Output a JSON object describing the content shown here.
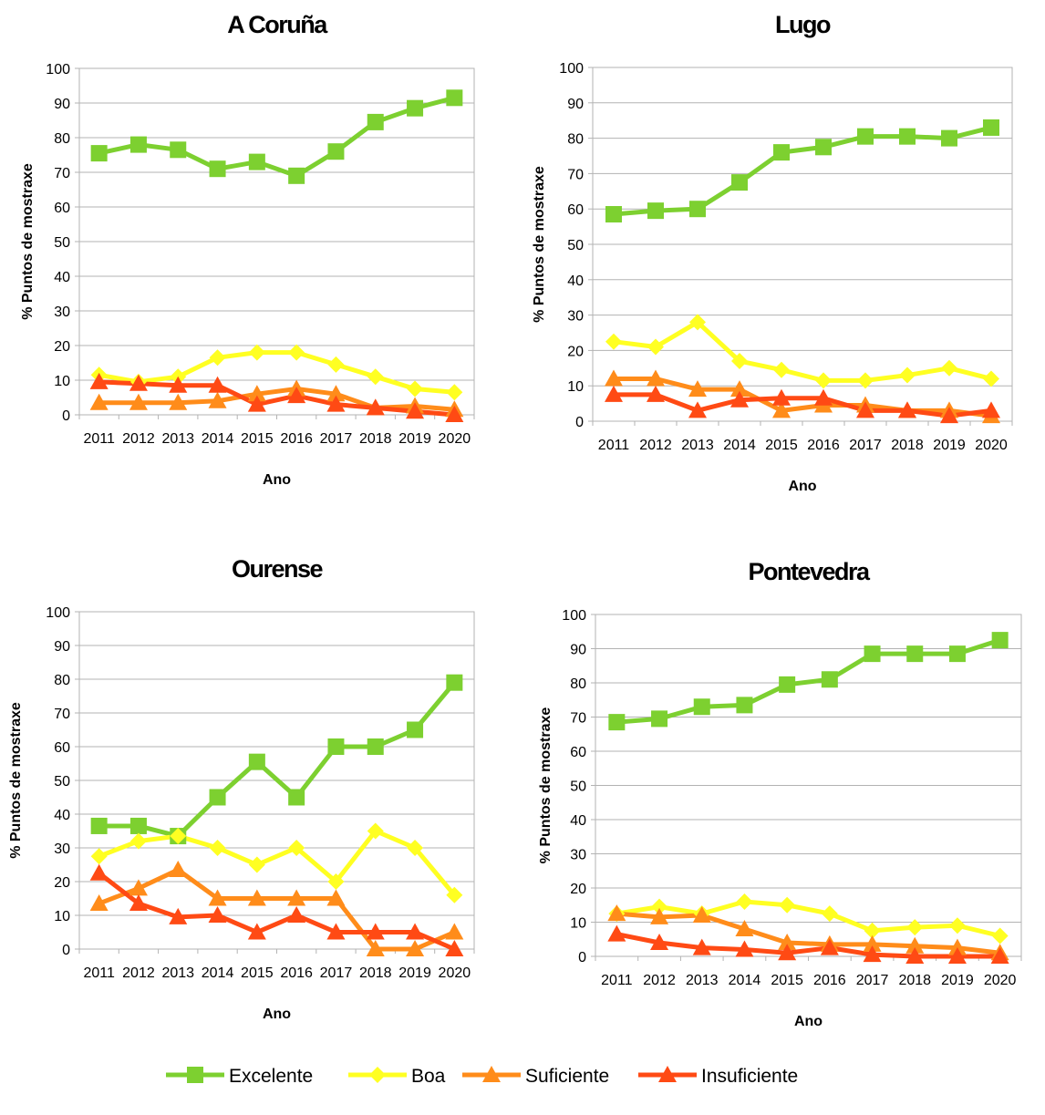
{
  "series_style": [
    {
      "name": "Excelente",
      "color": "#7dd030",
      "marker": "square"
    },
    {
      "name": "Boa",
      "color": "#ffff22",
      "marker": "diamond"
    },
    {
      "name": "Suficiente",
      "color": "#ff8c1a",
      "marker": "triangle"
    },
    {
      "name": "Insuficiente",
      "color": "#ff4a14",
      "marker": "triangle"
    }
  ],
  "legend": {
    "placement": "bottom-center",
    "items": [
      "Excelente",
      "Boa",
      "Suficiente",
      "Insuficiente"
    ]
  },
  "chart_data": [
    {
      "type": "line",
      "title": "A Coruña",
      "xlabel": "Ano",
      "ylabel": "% Puntos de mostraxe",
      "ylim": [
        0,
        100
      ],
      "yticks": [
        0,
        10,
        20,
        30,
        40,
        50,
        60,
        70,
        80,
        90,
        100
      ],
      "grid": true,
      "categories": [
        "2011",
        "2012",
        "2013",
        "2014",
        "2015",
        "2016",
        "2017",
        "2018",
        "2019",
        "2020"
      ],
      "series": [
        {
          "name": "Excelente",
          "values": [
            75.5,
            78,
            76.5,
            71,
            73,
            69,
            76,
            84.5,
            88.5,
            91.5
          ]
        },
        {
          "name": "Boa",
          "values": [
            11.5,
            9.5,
            11,
            16.5,
            18,
            18,
            14.5,
            11,
            7.5,
            6.5
          ]
        },
        {
          "name": "Suficiente",
          "values": [
            3.5,
            3.5,
            3.5,
            4,
            6,
            7.5,
            6,
            2,
            2.5,
            1.5
          ]
        },
        {
          "name": "Insuficiente",
          "values": [
            9.5,
            9,
            8.5,
            8.5,
            3,
            5.5,
            3,
            2,
            1,
            0
          ]
        }
      ]
    },
    {
      "type": "line",
      "title": "Lugo",
      "xlabel": "Ano",
      "ylabel": "% Puntos de mostraxe",
      "ylim": [
        0,
        100
      ],
      "yticks": [
        0,
        10,
        20,
        30,
        40,
        50,
        60,
        70,
        80,
        90,
        100
      ],
      "grid": true,
      "categories": [
        "2011",
        "2012",
        "2013",
        "2014",
        "2015",
        "2016",
        "2017",
        "2018",
        "2019",
        "2020"
      ],
      "series": [
        {
          "name": "Excelente",
          "values": [
            58.5,
            59.5,
            60,
            67.5,
            76,
            77.5,
            80.5,
            80.5,
            80,
            83
          ]
        },
        {
          "name": "Boa",
          "values": [
            22.5,
            21,
            28,
            17,
            14.5,
            11.5,
            11.5,
            13,
            15,
            12
          ]
        },
        {
          "name": "Suficiente",
          "values": [
            12,
            12,
            9,
            9,
            3,
            4.5,
            4.5,
            3,
            3,
            1.5
          ]
        },
        {
          "name": "Insuficiente",
          "values": [
            7.5,
            7.5,
            3,
            6,
            6.5,
            6.5,
            3,
            3,
            1.5,
            3
          ]
        }
      ]
    },
    {
      "type": "line",
      "title": "Ourense",
      "xlabel": "Ano",
      "ylabel": "% Puntos de mostraxe",
      "ylim": [
        0,
        100
      ],
      "yticks": [
        0,
        10,
        20,
        30,
        40,
        50,
        60,
        70,
        80,
        90,
        100
      ],
      "grid": true,
      "categories": [
        "2011",
        "2012",
        "2013",
        "2014",
        "2015",
        "2016",
        "2017",
        "2018",
        "2019",
        "2020"
      ],
      "series": [
        {
          "name": "Excelente",
          "values": [
            36.5,
            36.5,
            33.5,
            45,
            55.5,
            45,
            60,
            60,
            65,
            79
          ]
        },
        {
          "name": "Boa",
          "values": [
            27.5,
            32,
            33.5,
            30,
            25,
            30,
            20,
            35,
            30,
            16
          ]
        },
        {
          "name": "Suficiente",
          "values": [
            13.5,
            18,
            23.5,
            15,
            15,
            15,
            15,
            0,
            0,
            5
          ]
        },
        {
          "name": "Insuficiente",
          "values": [
            22.5,
            13.5,
            9.5,
            10,
            5,
            10,
            5,
            5,
            5,
            0
          ]
        }
      ]
    },
    {
      "type": "line",
      "title": "Pontevedra",
      "xlabel": "Ano",
      "ylabel": "% Puntos de mostraxe",
      "ylim": [
        0,
        100
      ],
      "yticks": [
        0,
        10,
        20,
        30,
        40,
        50,
        60,
        70,
        80,
        90,
        100
      ],
      "grid": true,
      "categories": [
        "2011",
        "2012",
        "2013",
        "2014",
        "2015",
        "2016",
        "2017",
        "2018",
        "2019",
        "2020"
      ],
      "series": [
        {
          "name": "Excelente",
          "values": [
            68.5,
            69.5,
            73,
            73.5,
            79.5,
            81,
            88.5,
            88.5,
            88.5,
            92.5
          ]
        },
        {
          "name": "Boa",
          "values": [
            12.5,
            14.5,
            12.5,
            16,
            15,
            12.5,
            7.5,
            8.5,
            9,
            6
          ]
        },
        {
          "name": "Suficiente",
          "values": [
            12.5,
            11.5,
            12,
            8,
            4,
            3.5,
            3.5,
            3,
            2.5,
            1
          ]
        },
        {
          "name": "Insuficiente",
          "values": [
            6.5,
            4,
            2.5,
            2,
            1,
            2.5,
            0.5,
            0,
            0,
            0
          ]
        }
      ]
    }
  ]
}
